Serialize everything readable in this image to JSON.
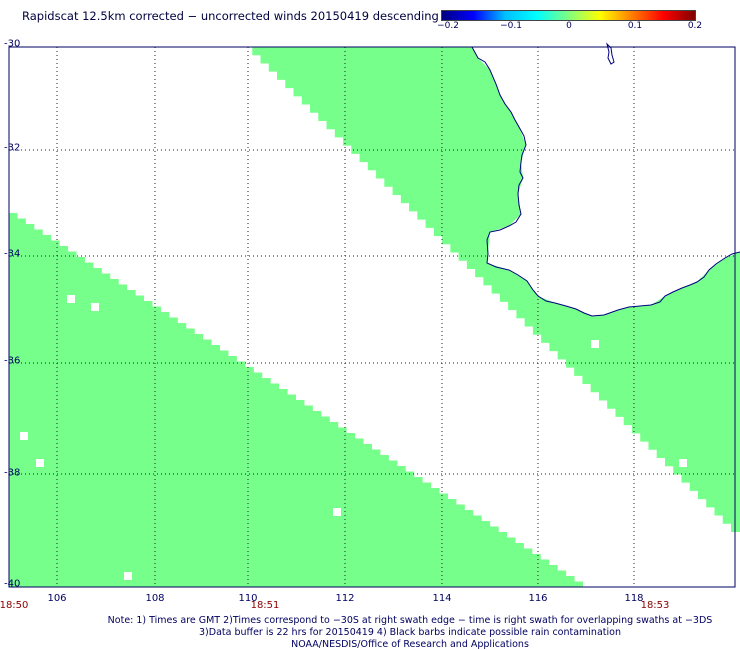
{
  "title": "Rapidscat 12.5km corrected − uncorrected winds 20150419 descending",
  "colorbar": {
    "ticks": [
      "−0.2",
      "−0.1",
      "0",
      "0.1",
      "0.2"
    ],
    "colors": [
      "#00007f",
      "#0000ff",
      "#00bfff",
      "#00ffff",
      "#7fff7f",
      "#ffff00",
      "#ff7f00",
      "#ff0000",
      "#7f0000"
    ]
  },
  "map": {
    "lat_ticks": [
      "-30",
      "-32",
      "-34",
      "-36",
      "-38",
      "-40"
    ],
    "lon_ticks": [
      "106",
      "108",
      "110",
      "112",
      "114",
      "116",
      "118"
    ],
    "time_labels": [
      "18:50",
      "18:51",
      "18:53"
    ],
    "swath_color": "#77ff8b",
    "coast_color": "#000080",
    "grid_style": "dotted"
  },
  "notes": {
    "line1": "Note: 1) Times are GMT 2)Times correspond to −30S at right swath edge − time is right swath for overlapping swaths at −3DS",
    "line2": "3)Data buffer is 22 hrs for 20150419 4) Black barbs indicate possible rain contamination",
    "line3": "NOAA/NESDIS/Office of Research and Applications"
  }
}
